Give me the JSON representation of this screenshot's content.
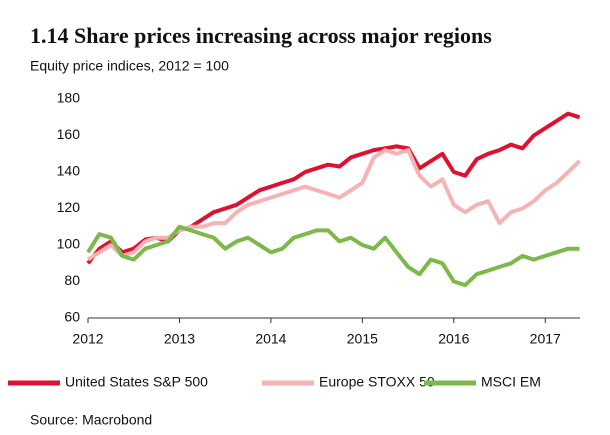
{
  "chart_data": {
    "type": "line",
    "title": "1.14 Share prices increasing across major regions",
    "subtitle": "Equity price indices, 2012 = 100",
    "source": "Source: Macrobond",
    "x": [
      2012,
      2012.125,
      2012.25,
      2012.375,
      2012.5,
      2012.625,
      2012.75,
      2012.875,
      2013,
      2013.125,
      2013.25,
      2013.375,
      2013.5,
      2013.625,
      2013.75,
      2013.875,
      2014,
      2014.125,
      2014.25,
      2014.375,
      2014.5,
      2014.625,
      2014.75,
      2014.875,
      2015,
      2015.125,
      2015.25,
      2015.375,
      2015.5,
      2015.625,
      2015.75,
      2015.875,
      2016,
      2016.125,
      2016.25,
      2016.375,
      2016.5,
      2016.625,
      2016.75,
      2016.875,
      2017,
      2017.125,
      2017.25,
      2017.375
    ],
    "series": [
      {
        "name": "United States S&P 500",
        "color": "#e0102f",
        "values": [
          90,
          98,
          102,
          96,
          98,
          103,
          104,
          102,
          108,
          110,
          114,
          118,
          120,
          122,
          126,
          130,
          132,
          134,
          136,
          140,
          142,
          144,
          143,
          148,
          150,
          152,
          153,
          154,
          153,
          142,
          146,
          150,
          140,
          138,
          147,
          150,
          152,
          155,
          153,
          160,
          164,
          168,
          172,
          170
        ]
      },
      {
        "name": "Europe STOXX 50",
        "color": "#f6b3b4",
        "values": [
          92,
          96,
          100,
          94,
          96,
          102,
          104,
          104,
          108,
          110,
          110,
          112,
          112,
          118,
          122,
          124,
          126,
          128,
          130,
          132,
          130,
          128,
          126,
          130,
          134,
          148,
          152,
          150,
          152,
          138,
          132,
          136,
          122,
          118,
          122,
          124,
          112,
          118,
          120,
          124,
          130,
          134,
          140,
          146
        ]
      },
      {
        "name": "MSCI EM",
        "color": "#7cb84a",
        "values": [
          96,
          106,
          104,
          94,
          92,
          98,
          100,
          102,
          110,
          108,
          106,
          104,
          98,
          102,
          104,
          100,
          96,
          98,
          104,
          106,
          108,
          108,
          102,
          104,
          100,
          98,
          104,
          96,
          88,
          84,
          92,
          90,
          80,
          78,
          84,
          86,
          88,
          90,
          94,
          92,
          94,
          96,
          98,
          98
        ]
      }
    ],
    "xlim": [
      2012,
      2017.38
    ],
    "xticks": [
      2012,
      2013,
      2014,
      2015,
      2016,
      2017
    ],
    "ylim": [
      60,
      180
    ],
    "yticks": [
      60,
      80,
      100,
      120,
      140,
      160,
      180
    ],
    "grid": false
  }
}
